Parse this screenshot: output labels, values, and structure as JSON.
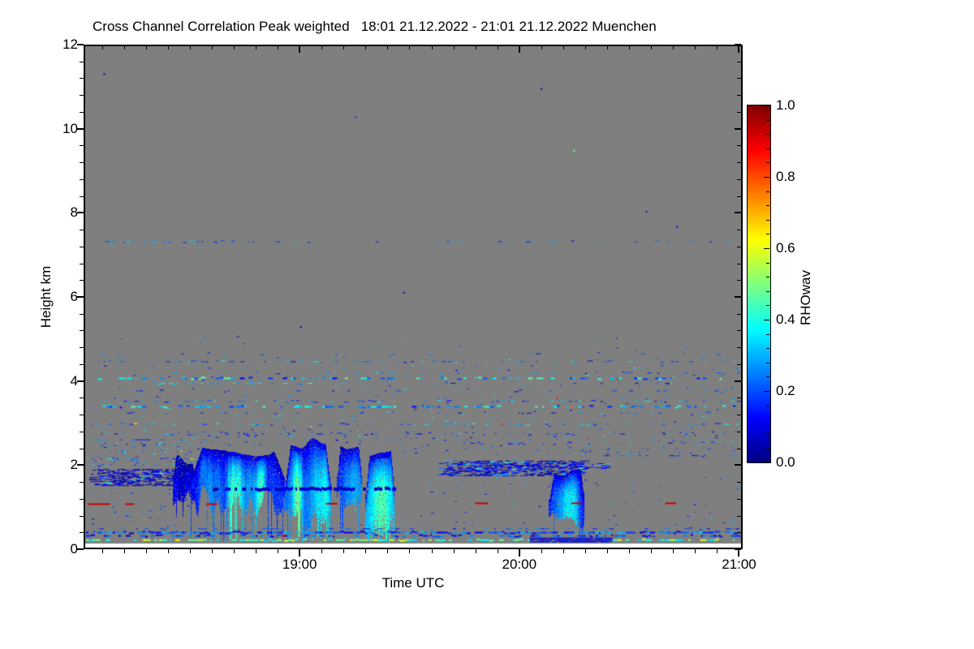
{
  "title": "Cross Channel Correlation Peak weighted   18:01 21.12.2022 - 21:01 21.12.2022 Muenchen",
  "colors": {
    "background": "#ffffff",
    "axis": "#000000",
    "no_data": "#7f7f7f",
    "red_artifact": "#cc0000"
  },
  "chart_data": {
    "type": "heatmap",
    "title": "Cross Channel Correlation Peak weighted",
    "time_range_label": "18:01 21.12.2022 - 21:01 21.12.2022",
    "station": "Muenchen",
    "xlabel": "Time UTC",
    "ylabel": "Height km",
    "x_range_hours": [
      18.0167,
      21.0167
    ],
    "x_major_ticks": [
      {
        "t": 19,
        "label": "19:00"
      },
      {
        "t": 20,
        "label": "20:00"
      },
      {
        "t": 21,
        "label": "21:00"
      }
    ],
    "x_minor_step_hours": 0.1,
    "y_range_km": [
      0,
      12
    ],
    "y_major_ticks": [
      {
        "h": 0,
        "label": "0"
      },
      {
        "h": 2,
        "label": "2"
      },
      {
        "h": 4,
        "label": "4"
      },
      {
        "h": 6,
        "label": "6"
      },
      {
        "h": 8,
        "label": "8"
      },
      {
        "h": 10,
        "label": "10"
      },
      {
        "h": 12,
        "label": "12"
      }
    ],
    "y_minor_step_km": 0.4,
    "colorbar": {
      "label": "RHOwav",
      "range": [
        0,
        1
      ],
      "major_ticks": [
        {
          "v": 0.0,
          "label": "0.0"
        },
        {
          "v": 0.2,
          "label": "0.2"
        },
        {
          "v": 0.4,
          "label": "0.4"
        },
        {
          "v": 0.6,
          "label": "0.6"
        },
        {
          "v": 0.8,
          "label": "0.8"
        },
        {
          "v": 1.0,
          "label": "1.0"
        }
      ],
      "minor_step": 0.04,
      "colormap": "jet"
    },
    "no_data_color": "#7f7f7f",
    "min_valid_height_km": 0.1,
    "features": {
      "speckle_rows": [
        {
          "h": 7.32,
          "t0": 18.03,
          "t1": 21.02,
          "density": 0.2,
          "vmin": 0.12,
          "vmax": 0.34,
          "thick": 1
        },
        {
          "h": 7.32,
          "t0": 18.06,
          "t1": 18.72,
          "density": 0.3,
          "vmin": 0.15,
          "vmax": 0.38,
          "thick": 1
        },
        {
          "h": 4.62,
          "t0": 18.04,
          "t1": 21.0,
          "density": 0.08,
          "vmin": 0.08,
          "vmax": 0.3,
          "thick": 1
        },
        {
          "h": 4.45,
          "t0": 18.04,
          "t1": 21.02,
          "density": 0.26,
          "vmin": 0.1,
          "vmax": 0.38,
          "thick": 1
        },
        {
          "h": 4.18,
          "t0": 18.1,
          "t1": 21.02,
          "density": 0.12,
          "vmin": 0.08,
          "vmax": 0.32,
          "thick": 1
        },
        {
          "h": 4.05,
          "t0": 18.04,
          "t1": 21.02,
          "density": 0.34,
          "vmin": 0.12,
          "vmax": 0.5,
          "thick": 2,
          "warm": 0.02
        },
        {
          "h": 3.93,
          "t0": 18.3,
          "t1": 19.05,
          "density": 0.55,
          "vmin": 0.25,
          "vmax": 0.42,
          "thick": 1
        },
        {
          "h": 3.93,
          "t0": 19.05,
          "t1": 21.0,
          "density": 0.1,
          "vmin": 0.1,
          "vmax": 0.3,
          "thick": 1
        },
        {
          "h": 3.75,
          "t0": 18.08,
          "t1": 21.0,
          "density": 0.09,
          "vmin": 0.08,
          "vmax": 0.26,
          "thick": 1
        },
        {
          "h": 3.5,
          "t0": 18.04,
          "t1": 21.02,
          "density": 0.27,
          "vmin": 0.1,
          "vmax": 0.38,
          "thick": 1
        },
        {
          "h": 3.37,
          "t0": 18.04,
          "t1": 21.02,
          "density": 0.42,
          "vmin": 0.12,
          "vmax": 0.46,
          "thick": 2,
          "warm": 0.035
        },
        {
          "h": 3.22,
          "t0": 18.15,
          "t1": 21.0,
          "density": 0.1,
          "vmin": 0.08,
          "vmax": 0.3,
          "thick": 1
        },
        {
          "h": 2.95,
          "t0": 18.04,
          "t1": 21.02,
          "density": 0.27,
          "vmin": 0.1,
          "vmax": 0.42,
          "thick": 1,
          "warm": 0.02
        },
        {
          "h": 2.72,
          "t0": 18.04,
          "t1": 21.0,
          "density": 0.16,
          "vmin": 0.08,
          "vmax": 0.34,
          "thick": 1
        },
        {
          "h": 2.58,
          "t0": 18.04,
          "t1": 18.6,
          "density": 0.3,
          "vmin": 0.08,
          "vmax": 0.34,
          "thick": 1
        },
        {
          "h": 2.5,
          "t0": 19.45,
          "t1": 21.0,
          "density": 0.13,
          "vmin": 0.06,
          "vmax": 0.3,
          "thick": 1
        },
        {
          "h": 2.2,
          "t0": 20.28,
          "t1": 21.0,
          "density": 0.18,
          "vmin": 0.08,
          "vmax": 0.3,
          "thick": 1
        },
        {
          "h": 2.12,
          "t0": 18.06,
          "t1": 18.55,
          "density": 0.35,
          "vmin": 0.1,
          "vmax": 0.42,
          "thick": 1,
          "warm": 0.05
        },
        {
          "h": 1.4,
          "t0": 18.6,
          "t1": 19.45,
          "density": 0.8,
          "vmin": 0.03,
          "vmax": 0.11,
          "thick": 4
        },
        {
          "h": 0.45,
          "t0": 18.02,
          "t1": 21.02,
          "density": 0.3,
          "vmin": 0.08,
          "vmax": 0.3,
          "thick": 1
        },
        {
          "h": 0.36,
          "t0": 18.02,
          "t1": 21.02,
          "density": 0.85,
          "vmin": 0.08,
          "vmax": 0.32,
          "thick": 2,
          "warm": 0.015
        },
        {
          "h": 0.28,
          "t0": 18.02,
          "t1": 21.02,
          "density": 0.55,
          "vmin": 0.05,
          "vmax": 0.28,
          "thick": 2,
          "warm": 0.01
        },
        {
          "h": 0.18,
          "t0": 18.02,
          "t1": 21.02,
          "density": 0.6,
          "vmin": 0.3,
          "vmax": 0.62,
          "thick": 2
        }
      ],
      "dark_blocks": [
        {
          "t0": 20.05,
          "t1": 20.42,
          "h0": 0.14,
          "h1": 0.24,
          "v": 0.06
        }
      ],
      "scatter_boxes": [
        {
          "t0": 18.04,
          "t1": 21.0,
          "h0": 2.62,
          "h1": 4.6,
          "count": 300,
          "vmin": 0.07,
          "vmax": 0.4,
          "warm": 0.02
        },
        {
          "t0": 18.04,
          "t1": 21.0,
          "h0": 4.6,
          "h1": 5.1,
          "count": 20,
          "vmin": 0.06,
          "vmax": 0.3
        },
        {
          "t0": 19.45,
          "t1": 21.0,
          "h0": 2.25,
          "h1": 2.8,
          "count": 130,
          "vmin": 0.05,
          "vmax": 0.35
        },
        {
          "t0": 19.5,
          "t1": 21.0,
          "h0": 0.55,
          "h1": 1.7,
          "count": 70,
          "vmin": 0.06,
          "vmax": 0.35
        },
        {
          "t0": 18.02,
          "t1": 18.55,
          "h0": 1.95,
          "h1": 2.55,
          "count": 120,
          "vmin": 0.08,
          "vmax": 0.4,
          "warm": 0.05
        },
        {
          "t0": 18.02,
          "t1": 18.5,
          "h0": 0.5,
          "h1": 1.45,
          "count": 45,
          "vmin": 0.06,
          "vmax": 0.35,
          "warm": 0.04
        },
        {
          "t0": 18.55,
          "t1": 19.5,
          "h0": 0.5,
          "h1": 1.0,
          "count": 40,
          "vmin": 0.1,
          "vmax": 0.4,
          "warm": 0.05
        },
        {
          "t0": 18.5,
          "t1": 19.45,
          "h0": 2.45,
          "h1": 2.85,
          "count": 60,
          "vmin": 0.05,
          "vmax": 0.3
        }
      ],
      "isolated_dots": [
        {
          "t": 19.25,
          "h": 10.32,
          "v": 0.18
        },
        {
          "t": 20.25,
          "h": 9.52,
          "v": 0.5
        },
        {
          "t": 20.58,
          "h": 8.06,
          "v": 0.15
        },
        {
          "t": 20.72,
          "h": 7.7,
          "v": 0.1
        },
        {
          "t": 19.47,
          "h": 6.12,
          "v": 0.06
        },
        {
          "t": 18.1,
          "h": 11.35,
          "v": 0.07
        },
        {
          "t": 20.1,
          "h": 11.0,
          "v": 0.05
        },
        {
          "t": 19.0,
          "h": 5.3,
          "v": 0.1
        }
      ],
      "red_segments": [
        {
          "t0": 18.03,
          "t1": 18.13,
          "h": 1.04
        },
        {
          "t0": 18.2,
          "t1": 18.24,
          "h": 1.04
        },
        {
          "t0": 18.57,
          "t1": 18.62,
          "h": 1.04
        },
        {
          "t0": 19.12,
          "t1": 19.17,
          "h": 1.05
        },
        {
          "t0": 19.8,
          "t1": 19.86,
          "h": 1.06
        },
        {
          "t0": 20.24,
          "t1": 20.29,
          "h": 1.06
        },
        {
          "t0": 20.67,
          "t1": 20.72,
          "h": 1.06
        }
      ],
      "streak_layers": [
        {
          "t0": 18.06,
          "t1": 18.55,
          "hTop": 1.88,
          "hBot": 1.48,
          "density": 0.6,
          "vmin": 0.03,
          "vmax": 0.2
        },
        {
          "t0": 19.66,
          "t1": 20.28,
          "hTop": 2.08,
          "hBot": 1.72,
          "density": 0.75,
          "vmin": 0.03,
          "vmax": 0.28
        },
        {
          "t0": 20.28,
          "t1": 20.4,
          "hTop": 2.02,
          "hBot": 1.9,
          "density": 0.6,
          "vmin": 0.1,
          "vmax": 0.55
        }
      ],
      "plumes": [
        {
          "t0": 18.42,
          "t1": 18.52,
          "top": 2.25,
          "bot": 1.0,
          "vmin": 0.04,
          "vmax": 0.2,
          "deep": 0.05,
          "deepBot": 0.6,
          "rag": 0.3,
          "cores": []
        },
        {
          "t0": 18.5,
          "t1": 18.93,
          "top": 2.4,
          "bot": 0.7,
          "vmin": 0.08,
          "vmax": 0.4,
          "deep": 0.12,
          "deepBot": 0.15,
          "rag": 0.45,
          "cores": [
            18.68,
            18.82
          ]
        },
        {
          "t0": 18.93,
          "t1": 19.14,
          "top": 2.62,
          "bot": 0.15,
          "vmin": 0.1,
          "vmax": 0.44,
          "deep": 0.3,
          "deepBot": 0.12,
          "rag": 0.35,
          "cores": [
            19.0,
            19.08
          ]
        },
        {
          "t0": 19.17,
          "t1": 19.28,
          "top": 2.6,
          "bot": 0.75,
          "vmin": 0.08,
          "vmax": 0.38,
          "deep": 0.15,
          "deepBot": 0.3,
          "rag": 0.4,
          "cores": [
            19.22
          ]
        },
        {
          "t0": 19.3,
          "t1": 19.43,
          "top": 2.35,
          "bot": 0.15,
          "vmin": 0.12,
          "vmax": 0.48,
          "deep": 0.35,
          "deepBot": 0.1,
          "rag": 0.3,
          "cores": [
            19.36
          ]
        },
        {
          "t0": 20.14,
          "t1": 20.3,
          "top": 1.9,
          "bot": 0.35,
          "vmin": 0.05,
          "vmax": 0.42,
          "deep": 0.2,
          "deepBot": 0.25,
          "rag": 0.5,
          "cores": [
            20.2
          ]
        }
      ]
    }
  }
}
